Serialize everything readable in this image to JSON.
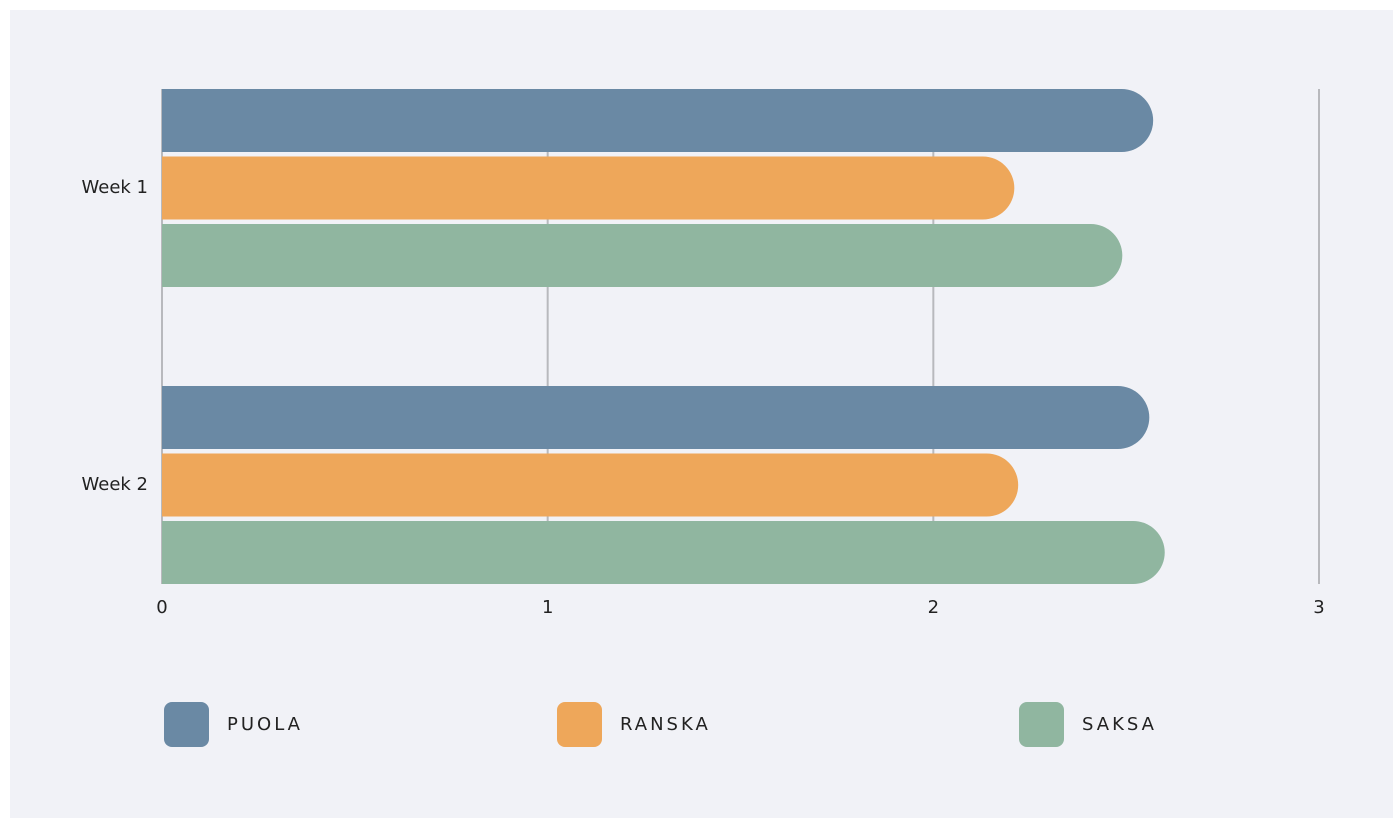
{
  "chart_data": {
    "type": "bar",
    "orientation": "horizontal",
    "categories": [
      "Week 1",
      "Week 2"
    ],
    "series": [
      {
        "name": "PUOLA",
        "color": "#6a89a4",
        "values": [
          2.57,
          2.56
        ]
      },
      {
        "name": "RANSKA",
        "color": "#eea75a",
        "values": [
          2.21,
          2.22
        ]
      },
      {
        "name": "SAKSA",
        "color": "#90b6a0",
        "values": [
          2.49,
          2.6
        ]
      }
    ],
    "xlim": [
      0,
      3
    ],
    "xticks": [
      0,
      1,
      2,
      3
    ],
    "grid": true,
    "legend": "bottom"
  }
}
